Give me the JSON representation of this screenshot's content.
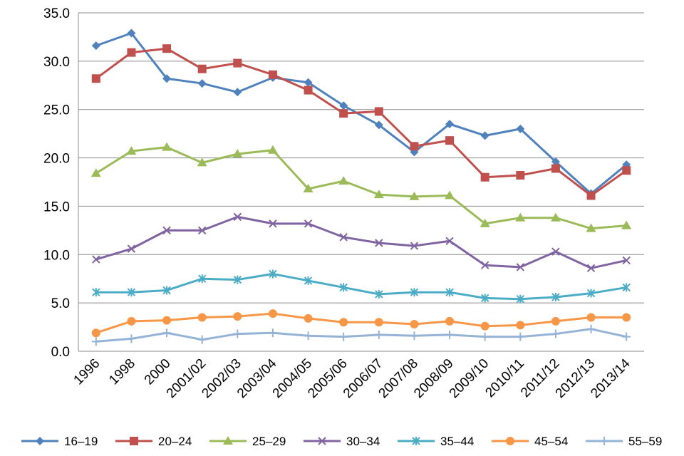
{
  "chart_data": {
    "type": "line",
    "title": "",
    "xlabel": "",
    "ylabel": "",
    "ylim": [
      0,
      35
    ],
    "yticks": [
      "0.0",
      "5.0",
      "10.0",
      "15.0",
      "20.0",
      "25.0",
      "30.0",
      "35.0"
    ],
    "grid": true,
    "legend_position": "bottom",
    "categories": [
      "1996",
      "1998",
      "2000",
      "2001/02",
      "2002/03",
      "2003/04",
      "2004/05",
      "2005/06",
      "2006/07",
      "2007/08",
      "2008/09",
      "2009/10",
      "2010/11",
      "2011/12",
      "2012/13",
      "2013/14"
    ],
    "series": [
      {
        "name": "16–19",
        "color": "#4f81bd",
        "marker": "diamond",
        "values": [
          31.6,
          32.9,
          28.2,
          27.7,
          26.8,
          28.3,
          27.8,
          25.4,
          23.4,
          20.6,
          23.5,
          22.3,
          23.0,
          19.6,
          16.3,
          19.3
        ]
      },
      {
        "name": "20–24",
        "color": "#c0504d",
        "marker": "square",
        "values": [
          28.2,
          30.9,
          31.3,
          29.2,
          29.8,
          28.6,
          27.0,
          24.6,
          24.8,
          21.2,
          21.8,
          18.0,
          18.2,
          18.9,
          16.1,
          18.7
        ]
      },
      {
        "name": "25–29",
        "color": "#9bbb59",
        "marker": "triangle",
        "values": [
          18.4,
          20.7,
          21.1,
          19.5,
          20.4,
          20.8,
          16.8,
          17.6,
          16.2,
          16.0,
          16.1,
          13.2,
          13.8,
          13.8,
          12.7,
          13.0
        ]
      },
      {
        "name": "30–34",
        "color": "#8064a2",
        "marker": "x",
        "values": [
          9.5,
          10.6,
          12.5,
          12.5,
          13.9,
          13.2,
          13.2,
          11.8,
          11.2,
          10.9,
          11.4,
          8.9,
          8.7,
          10.3,
          8.6,
          9.4
        ]
      },
      {
        "name": "35–44",
        "color": "#4bacc6",
        "marker": "star",
        "values": [
          6.1,
          6.1,
          6.3,
          7.5,
          7.4,
          8.0,
          7.3,
          6.6,
          5.9,
          6.1,
          6.1,
          5.5,
          5.4,
          5.6,
          6.0,
          6.6
        ]
      },
      {
        "name": "45–54",
        "color": "#f79646",
        "marker": "circle",
        "values": [
          1.9,
          3.1,
          3.2,
          3.5,
          3.6,
          3.9,
          3.4,
          3.0,
          3.0,
          2.8,
          3.1,
          2.6,
          2.7,
          3.1,
          3.5,
          3.5
        ]
      },
      {
        "name": "55–59",
        "color": "#95b3d7",
        "marker": "plus",
        "values": [
          1.0,
          1.3,
          1.9,
          1.2,
          1.8,
          1.9,
          1.6,
          1.5,
          1.7,
          1.6,
          1.7,
          1.5,
          1.5,
          1.8,
          2.3,
          1.5
        ]
      }
    ]
  }
}
